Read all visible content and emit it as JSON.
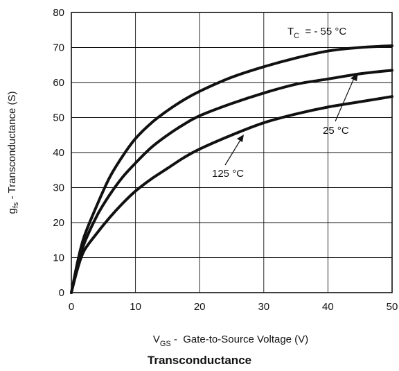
{
  "chart_data": {
    "type": "line",
    "title": "Transconductance",
    "xlabel": {
      "main": "V",
      "sub": "GS",
      "rest": " -  Gate-to-Source Voltage (V)"
    },
    "ylabel": {
      "main": "g",
      "sub": "fs",
      "rest": " - Transconductance (S)"
    },
    "xlim": [
      0,
      50
    ],
    "ylim": [
      0,
      80
    ],
    "xticks": [
      0,
      10,
      20,
      30,
      40,
      50
    ],
    "yticks": [
      0,
      10,
      20,
      30,
      40,
      50,
      60,
      70,
      80
    ],
    "grid": true,
    "series": [
      {
        "name": "- 55 °C",
        "x": [
          0,
          1,
          2,
          4,
          6,
          8,
          10,
          12.5,
          15,
          17.5,
          20,
          25,
          30,
          35,
          40,
          45,
          50
        ],
        "y": [
          0,
          9,
          16,
          25,
          33,
          39,
          44,
          48.5,
          52,
          55,
          57.5,
          61.5,
          64.5,
          67,
          69,
          70,
          70.5
        ]
      },
      {
        "name": "25 °C",
        "x": [
          0,
          1,
          2,
          4,
          6,
          8,
          10,
          12.5,
          15,
          17.5,
          20,
          25,
          30,
          35,
          40,
          45,
          50
        ],
        "y": [
          0,
          8,
          14,
          22,
          28,
          33,
          37,
          41.5,
          45,
          48,
          50.5,
          54,
          57,
          59.5,
          61,
          62.5,
          63.5
        ]
      },
      {
        "name": "125 °C",
        "x": [
          0,
          1,
          2,
          4,
          6,
          8,
          10,
          12.5,
          15,
          17.5,
          20,
          25,
          30,
          35,
          40,
          45,
          50
        ],
        "y": [
          0,
          7,
          12,
          17,
          21.5,
          25.5,
          29,
          32.5,
          35.5,
          38.5,
          41,
          45,
          48.5,
          51,
          53,
          54.5,
          56
        ]
      }
    ],
    "annotations": [
      {
        "id": "tc",
        "main": "T",
        "sub": "C",
        "rest": "  = - 55 °C"
      },
      {
        "id": "t25",
        "text": "25 °C"
      },
      {
        "id": "t125",
        "text": "125 °C"
      }
    ]
  }
}
